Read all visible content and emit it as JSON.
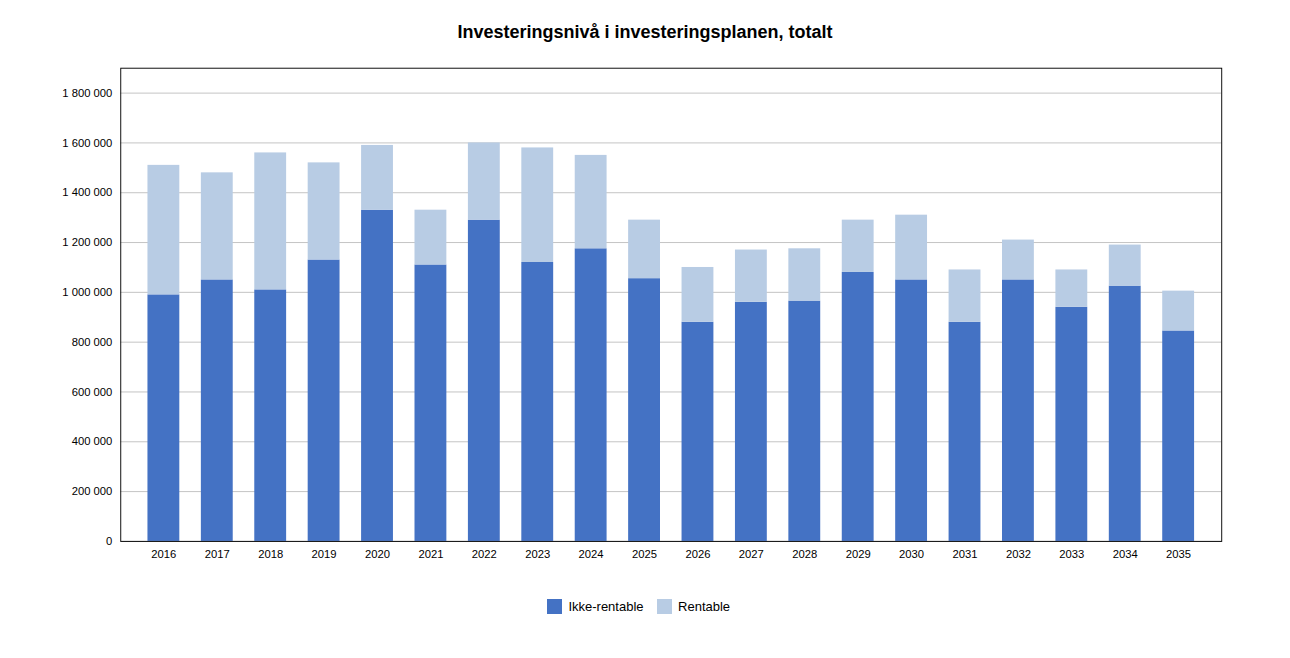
{
  "chart_data": {
    "type": "bar",
    "title": "Investeringsnivå i investeringsplanen, totalt",
    "categories": [
      "2016",
      "2017",
      "2018",
      "2019",
      "2020",
      "2021",
      "2022",
      "2023",
      "2024",
      "2025",
      "2026",
      "2027",
      "2028",
      "2029",
      "2030",
      "2031",
      "2032",
      "2033",
      "2034",
      "2035"
    ],
    "series": [
      {
        "name": "Ikke-rentable",
        "color": "#4472C4",
        "values": [
          990000,
          1050000,
          1010000,
          1130000,
          1330000,
          1110000,
          1290000,
          1120000,
          1175000,
          1055000,
          880000,
          960000,
          965000,
          1080000,
          1050000,
          880000,
          1050000,
          940000,
          1025000,
          845000
        ]
      },
      {
        "name": "Rentable",
        "color": "#B8CCE4",
        "values": [
          520000,
          430000,
          550000,
          390000,
          260000,
          220000,
          310000,
          460000,
          375000,
          235000,
          220000,
          210000,
          210000,
          210000,
          260000,
          210000,
          160000,
          150000,
          165000,
          160000
        ]
      }
    ],
    "stacked": true,
    "ylim": [
      0,
      1900000
    ],
    "yticks": [
      0,
      {
        "value": 200000,
        "label": "200 000"
      },
      {
        "value": 400000,
        "label": "400 000"
      },
      {
        "value": 600000,
        "label": "600 000"
      },
      {
        "value": 800000,
        "label": "800 000"
      },
      {
        "value": 1000000,
        "label": "1 000 000"
      },
      {
        "value": 1200000,
        "label": "1 200 000"
      },
      {
        "value": 1400000,
        "label": "1 400 000"
      },
      {
        "value": 1600000,
        "label": "1 600 000"
      },
      {
        "value": 1800000,
        "label": "1 800 000"
      }
    ],
    "grid": true,
    "legend": "bottom"
  }
}
